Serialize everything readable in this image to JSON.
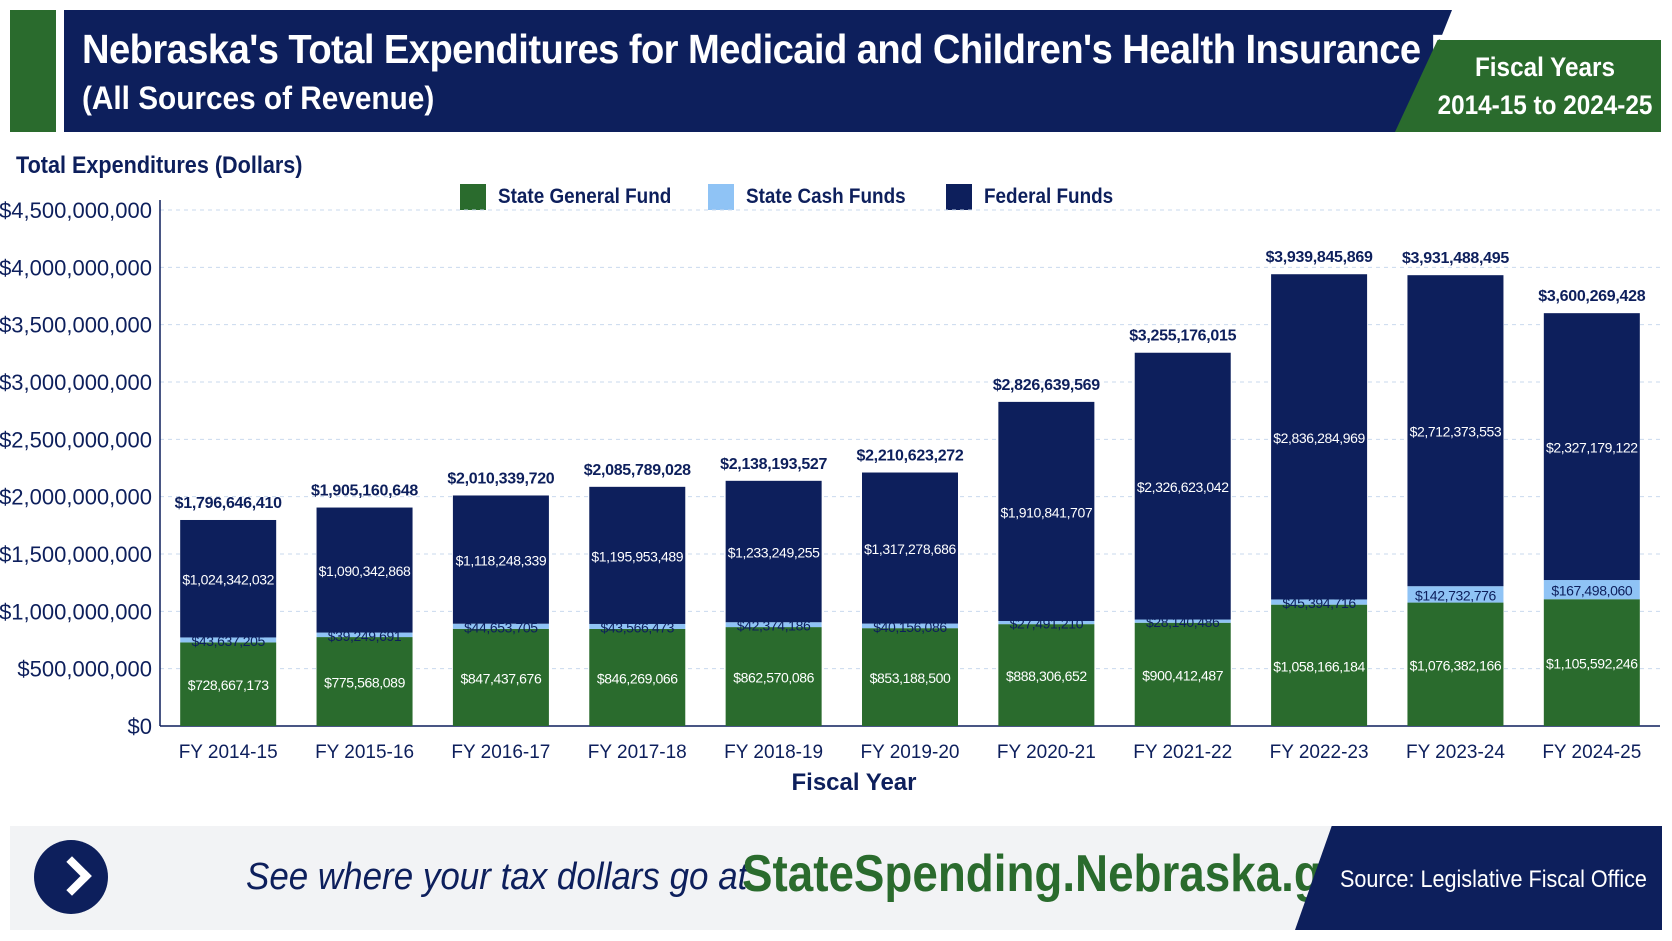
{
  "header": {
    "title": "Nebraska's Total Expenditures for Medicaid and Children's Health Insurance Program",
    "subtitle": "(All Sources of Revenue)",
    "fiscal_years_line1": "Fiscal Years",
    "fiscal_years_line2": "2014-15 to 2024-25"
  },
  "colors": {
    "navy": "#0d1f5c",
    "green": "#2a6b2d",
    "light_blue": "#8fc3f5"
  },
  "chart_data": {
    "type": "bar",
    "stacked": true,
    "ylabel": "Total Expenditures (Dollars)",
    "xlabel": "Fiscal Year",
    "ylim": [
      0,
      4500000000
    ],
    "yticks": [
      0,
      500000000,
      1000000000,
      1500000000,
      2000000000,
      2500000000,
      3000000000,
      3500000000,
      4000000000,
      4500000000
    ],
    "ytick_labels": [
      "$0",
      "$500,000,000",
      "$1,000,000,000",
      "$1,500,000,000",
      "$2,000,000,000",
      "$2,500,000,000",
      "$3,000,000,000",
      "$3,500,000,000",
      "$4,000,000,000",
      "$4,500,000,000"
    ],
    "grid": true,
    "legend_position": "top",
    "categories": [
      "FY 2014-15",
      "FY 2015-16",
      "FY 2016-17",
      "FY 2017-18",
      "FY 2018-19",
      "FY 2019-20",
      "FY 2020-21",
      "FY 2021-22",
      "FY 2022-23",
      "FY 2023-24",
      "FY 2024-25"
    ],
    "series": [
      {
        "name": "State General Fund",
        "color": "#2a6b2d",
        "values": [
          728667173,
          775568089,
          847437676,
          846269066,
          862570086,
          853188500,
          888306652,
          900412487,
          1058166184,
          1076382166,
          1105592246
        ],
        "labels": [
          "$728,667,173",
          "$775,568,089",
          "$847,437,676",
          "$846,269,066",
          "$862,570,086",
          "$853,188,500",
          "$888,306,652",
          "$900,412,487",
          "$1,058,166,184",
          "$1,076,382,166",
          "$1,105,592,246"
        ]
      },
      {
        "name": "State Cash Funds",
        "color": "#8fc3f5",
        "values": [
          43637205,
          39249691,
          44653705,
          43566473,
          42374186,
          40156086,
          27491210,
          28140486,
          45394716,
          142732776,
          167498060
        ],
        "labels": [
          "$43,637,205",
          "$39,249,691",
          "$44,653,705",
          "$43,566,473",
          "$42,374,186",
          "$40,156,086",
          "$27,491,210",
          "$28,140,486",
          "$45,394,716",
          "$142,732,776",
          "$167,498,060"
        ]
      },
      {
        "name": "Federal Funds",
        "color": "#0d1f5c",
        "values": [
          1024342032,
          1090342868,
          1118248339,
          1195953489,
          1233249255,
          1317278686,
          1910841707,
          2326623042,
          2836284969,
          2712373553,
          2327179122
        ],
        "labels": [
          "$1,024,342,032",
          "$1,090,342,868",
          "$1,118,248,339",
          "$1,195,953,489",
          "$1,233,249,255",
          "$1,317,278,686",
          "$1,910,841,707",
          "$2,326,623,042",
          "$2,836,284,969",
          "$2,712,373,553",
          "$2,327,179,122"
        ]
      }
    ],
    "totals": [
      1796646410,
      1905160648,
      2010339720,
      2085789028,
      2138193527,
      2210623272,
      2826639569,
      3255176015,
      3939845869,
      3931488495,
      3600269428
    ],
    "total_labels": [
      "$1,796,646,410",
      "$1,905,160,648",
      "$2,010,339,720",
      "$2,085,789,028",
      "$2,138,193,527",
      "$2,210,623,272",
      "$2,826,639,569",
      "$3,255,176,015",
      "$3,939,845,869",
      "$3,931,488,495",
      "$3,600,269,428"
    ]
  },
  "footer": {
    "tagline": "See where your tax dollars go at",
    "url": "StateSpending.Nebraska.gov",
    "source": "Source: Legislative Fiscal Office",
    "arrow_icon": "chevron-right-icon"
  }
}
